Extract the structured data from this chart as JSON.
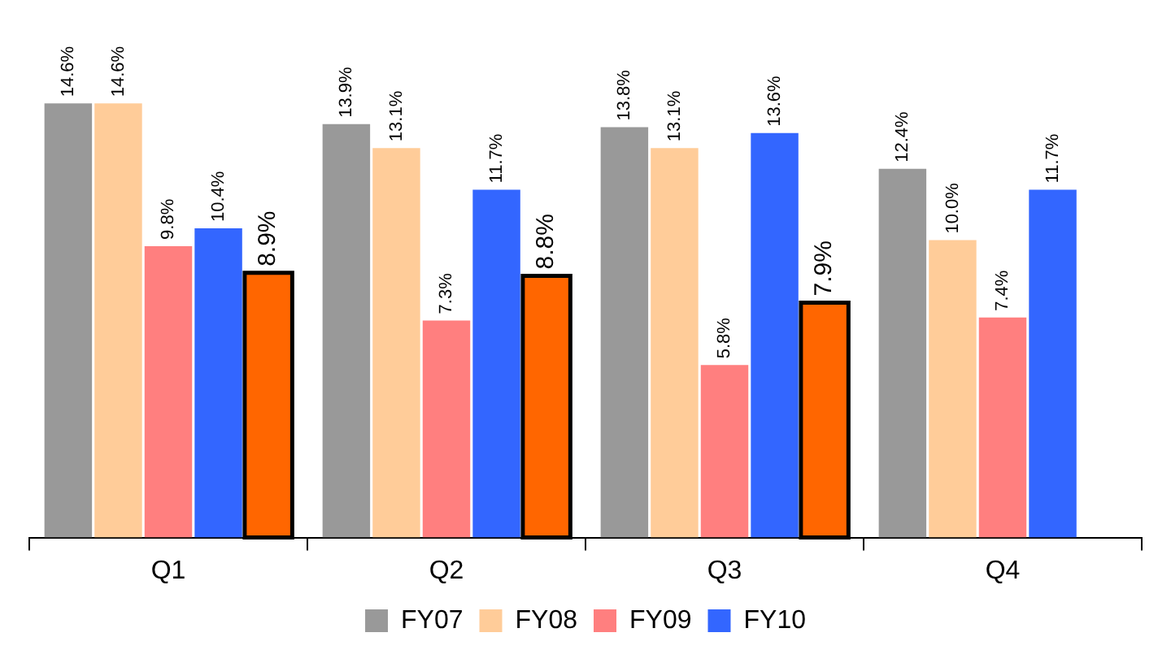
{
  "chart_data": {
    "type": "bar",
    "categories": [
      "Q1",
      "Q2",
      "Q3",
      "Q4"
    ],
    "legend": "bottom",
    "grid": false,
    "series": [
      {
        "name": "FY07",
        "color": "#999999",
        "values": [
          14.6,
          13.9,
          13.8,
          12.4
        ],
        "value_labels": [
          "14.6%",
          "13.9%",
          "13.8%",
          "12.4%"
        ]
      },
      {
        "name": "FY08",
        "color": "#ffcc99",
        "values": [
          14.6,
          13.1,
          13.1,
          10.0
        ],
        "value_labels": [
          "14.6%",
          "13.1%",
          "13.1%",
          "10.0%"
        ]
      },
      {
        "name": "FY09",
        "color": "#ff7f7f",
        "values": [
          9.8,
          7.3,
          5.8,
          7.4
        ],
        "value_labels": [
          "9.8%",
          "7.3%",
          "5.8%",
          "7.4%"
        ]
      },
      {
        "name": "FY10",
        "color": "#3366ff",
        "values": [
          10.4,
          11.7,
          13.6,
          11.7
        ],
        "value_labels": [
          "10.4%",
          "11.7%",
          "13.6%",
          "11.7%"
        ]
      },
      {
        "color": "#ff6600",
        "values": [
          8.9,
          8.8,
          7.9,
          null
        ],
        "value_labels": [
          "8.9%",
          "8.8%",
          "7.9%",
          null
        ]
      }
    ]
  }
}
